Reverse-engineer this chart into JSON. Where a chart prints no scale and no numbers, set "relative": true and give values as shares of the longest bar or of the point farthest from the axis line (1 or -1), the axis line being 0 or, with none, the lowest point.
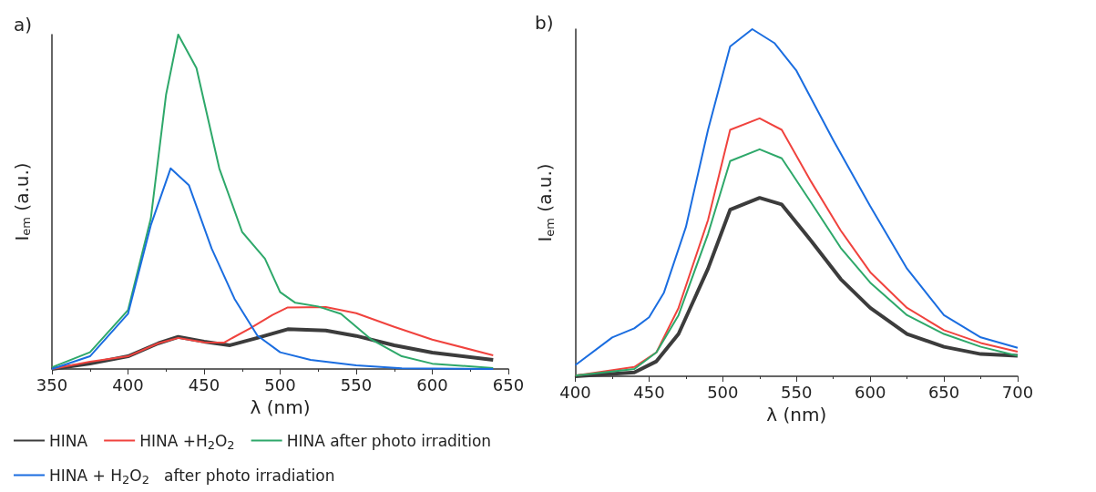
{
  "chart_data": [
    {
      "type": "line",
      "title": "a)",
      "xlabel": "λ (nm)",
      "ylabel": "I$_{em}$ (a.u.)",
      "relative": true,
      "xlim": [
        350,
        650
      ],
      "xticks": [
        350,
        400,
        450,
        500,
        550,
        600,
        650
      ],
      "grid": false,
      "legend": "bottom",
      "marker": "none",
      "line_style": "solid",
      "series": [
        {
          "name": "HINA",
          "color": "#3c3c3c",
          "x": [
            350,
            375,
            400,
            420,
            433,
            450,
            467,
            485,
            505,
            530,
            550,
            575,
            600,
            640
          ],
          "values": [
            0,
            0.016,
            0.038,
            0.077,
            0.096,
            0.082,
            0.071,
            0.093,
            0.119,
            0.115,
            0.099,
            0.071,
            0.049,
            0.027
          ]
        },
        {
          "name": "HINA +H$_{2}$O$_{2}$",
          "color": "#f0433e",
          "x": [
            350,
            375,
            400,
            420,
            433,
            450,
            463,
            480,
            495,
            505,
            530,
            550,
            575,
            600,
            640
          ],
          "values": [
            0,
            0.022,
            0.038,
            0.077,
            0.093,
            0.08,
            0.079,
            0.121,
            0.162,
            0.184,
            0.185,
            0.167,
            0.126,
            0.088,
            0.041
          ]
        },
        {
          "name": "HINA after photo irradition",
          "color": "#2ea86a",
          "x": [
            350,
            375,
            400,
            415,
            425,
            433,
            445,
            460,
            475,
            490,
            500,
            510,
            525,
            540,
            560,
            580,
            600,
            640
          ],
          "values": [
            0.005,
            0.05,
            0.176,
            0.45,
            0.82,
            1,
            0.9,
            0.6,
            0.41,
            0.33,
            0.23,
            0.198,
            0.187,
            0.165,
            0.088,
            0.038,
            0.016,
            0.003
          ]
        },
        {
          "name": "HINA + H$_{2}$O$_{2}$   after photo irradiation",
          "color": "#1a6de0",
          "x": [
            350,
            375,
            400,
            415,
            428,
            440,
            455,
            470,
            485,
            500,
            520,
            550,
            580,
            640
          ],
          "values": [
            0,
            0.038,
            0.165,
            0.43,
            0.6,
            0.55,
            0.36,
            0.21,
            0.1,
            0.05,
            0.027,
            0.011,
            0.002,
            0
          ]
        }
      ]
    },
    {
      "type": "line",
      "title": "b)",
      "xlabel": "λ (nm)",
      "ylabel": "I$_{em}$ (a.u.)",
      "relative": true,
      "xlim": [
        400,
        700
      ],
      "xticks": [
        400,
        450,
        500,
        550,
        600,
        650,
        700
      ],
      "grid": false,
      "legend": false,
      "marker": "none",
      "line_style": "solid",
      "series": [
        {
          "color": "#3c3c3c",
          "x": [
            400,
            440,
            455,
            470,
            490,
            505,
            525,
            540,
            560,
            580,
            600,
            625,
            650,
            675,
            700
          ],
          "values": [
            0,
            0.011,
            0.043,
            0.122,
            0.31,
            0.48,
            0.514,
            0.495,
            0.39,
            0.28,
            0.197,
            0.122,
            0.085,
            0.064,
            0.059
          ]
        },
        {
          "color": "#f0433e",
          "x": [
            400,
            440,
            455,
            470,
            490,
            505,
            525,
            540,
            560,
            580,
            600,
            625,
            650,
            675,
            700
          ],
          "values": [
            0.002,
            0.027,
            0.069,
            0.197,
            0.45,
            0.71,
            0.743,
            0.71,
            0.56,
            0.42,
            0.3,
            0.197,
            0.133,
            0.096,
            0.071
          ]
        },
        {
          "color": "#2ea86a",
          "x": [
            400,
            440,
            455,
            470,
            490,
            505,
            525,
            540,
            560,
            580,
            600,
            625,
            650,
            675,
            700
          ],
          "values": [
            0.002,
            0.021,
            0.069,
            0.176,
            0.41,
            0.62,
            0.654,
            0.628,
            0.5,
            0.37,
            0.27,
            0.176,
            0.122,
            0.085,
            0.059
          ]
        },
        {
          "color": "#1a6de0",
          "x": [
            400,
            425,
            440,
            450,
            460,
            475,
            490,
            505,
            520,
            535,
            550,
            575,
            600,
            625,
            650,
            675,
            700
          ],
          "values": [
            0.032,
            0.112,
            0.138,
            0.17,
            0.24,
            0.43,
            0.71,
            0.95,
            1,
            0.96,
            0.88,
            0.68,
            0.49,
            0.31,
            0.176,
            0.112,
            0.082
          ]
        }
      ]
    }
  ]
}
